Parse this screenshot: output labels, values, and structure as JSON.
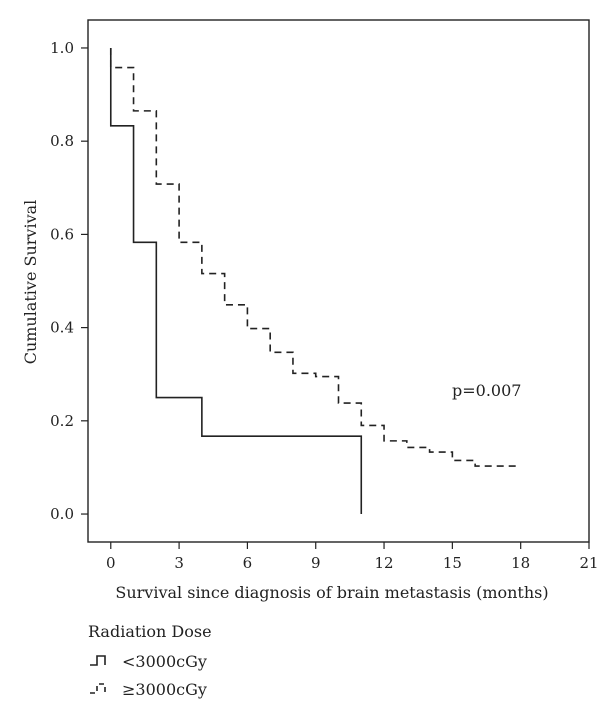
{
  "chart_data": {
    "type": "line",
    "subtype": "step (Kaplan-Meier)",
    "xlabel": "Survival since diagnosis of brain metastasis (months)",
    "ylabel": "Cumulative Survival",
    "xlim": [
      -1,
      21
    ],
    "ylim": [
      -0.06,
      1.06
    ],
    "xticks": [
      0,
      3,
      6,
      9,
      12,
      15,
      18,
      21
    ],
    "yticks": [
      0.0,
      0.2,
      0.4,
      0.6,
      0.8,
      1.0
    ],
    "xtick_labels": [
      "0",
      "3",
      "6",
      "9",
      "12",
      "15",
      "18",
      "21"
    ],
    "ytick_labels": [
      "0.0",
      "0.2",
      "0.4",
      "0.6",
      "0.8",
      "1.0"
    ],
    "grid": false,
    "annotation": "p=0.007",
    "legend_title": "Radiation Dose",
    "legend_placement": "bottom-left",
    "series": [
      {
        "name": "<3000cGy",
        "style": "solid",
        "color": "#222222",
        "steps": [
          {
            "x": 0,
            "y": 1.0
          },
          {
            "x": 0,
            "y": 0.833
          },
          {
            "x": 1,
            "y": 0.583
          },
          {
            "x": 2,
            "y": 0.25
          },
          {
            "x": 4,
            "y": 0.167
          },
          {
            "x": 11,
            "y": 0.0
          }
        ]
      },
      {
        "name": "≥3000cGy",
        "style": "dashed",
        "color": "#222222",
        "steps": [
          {
            "x": 0,
            "y": 1.0
          },
          {
            "x": 0,
            "y": 0.958
          },
          {
            "x": 1,
            "y": 0.865
          },
          {
            "x": 2,
            "y": 0.708
          },
          {
            "x": 3,
            "y": 0.583
          },
          {
            "x": 4,
            "y": 0.516
          },
          {
            "x": 5,
            "y": 0.449
          },
          {
            "x": 6,
            "y": 0.398
          },
          {
            "x": 7,
            "y": 0.347
          },
          {
            "x": 8,
            "y": 0.302
          },
          {
            "x": 9,
            "y": 0.295
          },
          {
            "x": 10,
            "y": 0.238
          },
          {
            "x": 11,
            "y": 0.19
          },
          {
            "x": 12,
            "y": 0.157
          },
          {
            "x": 13,
            "y": 0.143
          },
          {
            "x": 14,
            "y": 0.133
          },
          {
            "x": 15,
            "y": 0.115
          },
          {
            "x": 16,
            "y": 0.103
          },
          {
            "x": 18,
            "y": 0.103
          }
        ]
      }
    ]
  }
}
